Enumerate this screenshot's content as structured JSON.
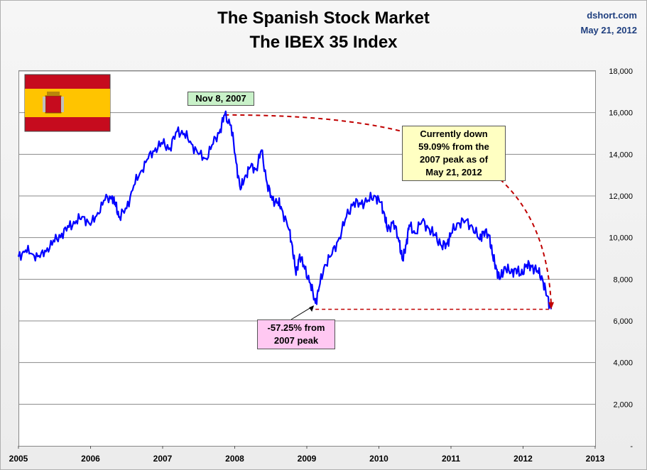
{
  "header": {
    "title_line1": "The Spanish Stock Market",
    "title_line2": "The IBEX 35 Index",
    "source": "dshort.com",
    "date": "May 21, 2012"
  },
  "annotations": {
    "peak_label": "Nov 8, 2007",
    "current_lines": [
      "Currently down",
      "59.09% from the",
      "2007 peak as of",
      "May 21, 2012"
    ],
    "trough_lines": [
      "-57.25% from",
      "2007 peak"
    ]
  },
  "colors": {
    "line": "#0000ff",
    "dashed": "#c00000",
    "flag_red": "#c60b1e",
    "flag_yellow": "#ffc400"
  },
  "chart_data": {
    "type": "line",
    "series": [
      {
        "x": [
          2005.0,
          2005.1,
          2005.2,
          2005.3,
          2005.4,
          2005.5,
          2005.6,
          2005.7,
          2005.8,
          2005.9,
          2006.0,
          2006.1,
          2006.2,
          2006.3,
          2006.35,
          2006.4,
          2006.5,
          2006.6,
          2006.7,
          2006.8,
          2006.9,
          2007.0,
          2007.1,
          2007.2,
          2007.3,
          2007.4,
          2007.5,
          2007.6,
          2007.7,
          2007.8,
          2007.86,
          2007.95,
          2008.02,
          2008.08,
          2008.15,
          2008.22,
          2008.3,
          2008.37,
          2008.45,
          2008.52,
          2008.6,
          2008.65,
          2008.75,
          2008.8,
          2008.85,
          2008.9,
          2008.97,
          2009.05,
          2009.12,
          2009.17,
          2009.25,
          2009.35,
          2009.45,
          2009.55,
          2009.65,
          2009.75,
          2009.85,
          2009.95,
          2010.02,
          2010.08,
          2010.12,
          2010.2,
          2010.28,
          2010.33,
          2010.38,
          2010.42,
          2010.5,
          2010.6,
          2010.7,
          2010.78,
          2010.87,
          2010.95,
          2011.0,
          2011.1,
          2011.2,
          2011.3,
          2011.4,
          2011.45,
          2011.53,
          2011.58,
          2011.63,
          2011.68,
          2011.75,
          2011.83,
          2011.9,
          2011.97,
          2012.05,
          2012.12,
          2012.2,
          2012.27,
          2012.33,
          2012.39
        ],
        "y": [
          9080,
          9400,
          9200,
          9050,
          9500,
          9800,
          10200,
          10500,
          10800,
          11000,
          10600,
          11200,
          11800,
          12000,
          11500,
          11000,
          11400,
          12500,
          13200,
          13800,
          14300,
          14500,
          14300,
          15100,
          15000,
          14500,
          14000,
          13800,
          14500,
          15200,
          15890,
          15400,
          13600,
          12300,
          13000,
          13400,
          13300,
          14200,
          12600,
          11800,
          11700,
          11400,
          10400,
          9600,
          8200,
          9200,
          8500,
          7800,
          6850,
          7600,
          8700,
          9200,
          10000,
          11000,
          11700,
          11600,
          11800,
          12000,
          11700,
          11100,
          10300,
          10800,
          9800,
          8900,
          9700,
          10600,
          10200,
          10800,
          10400,
          10100,
          9600,
          9700,
          10200,
          10700,
          10800,
          10500,
          9900,
          10300,
          10100,
          9100,
          8500,
          8000,
          8600,
          8300,
          8500,
          8200,
          8700,
          8600,
          8400,
          8000,
          7200,
          6560
        ]
      }
    ],
    "ylim": [
      0,
      18000
    ],
    "yticks": [
      "-",
      "2,000",
      "4,000",
      "6,000",
      "8,000",
      "10,000",
      "12,000",
      "14,000",
      "16,000",
      "18,000"
    ],
    "xlim": [
      2005,
      2013
    ],
    "xticks": [
      "2005",
      "2006",
      "2007",
      "2008",
      "2009",
      "2010",
      "2011",
      "2012",
      "2013"
    ],
    "peak": {
      "x": 2007.86,
      "y": 15890
    },
    "trough": {
      "x": 2009.12,
      "y": 6850
    },
    "current": {
      "x": 2012.39,
      "y": 6560
    },
    "grid": true
  }
}
